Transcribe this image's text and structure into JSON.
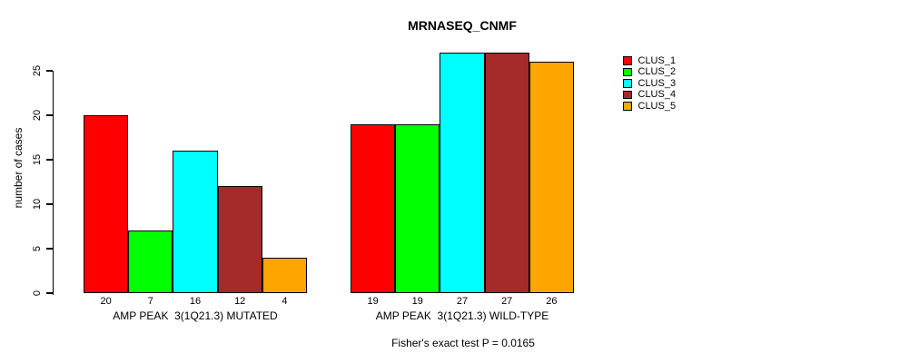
{
  "title": "MRNASEQ_CNMF",
  "ylabel": "number of cases",
  "subtitle": "Fisher's exact test P = 0.0165",
  "chart_data": {
    "type": "bar",
    "title": "MRNASEQ_CNMF",
    "xlabel": "",
    "ylabel": "number of cases",
    "ylim": [
      0,
      25
    ],
    "yticks": [
      0,
      5,
      10,
      15,
      20,
      25
    ],
    "grid": false,
    "legend_position": "right",
    "bar_value_labels": true,
    "annotation": "Fisher's exact test P = 0.0165",
    "categories": [
      "AMP PEAK  3(1Q21.3) MUTATED",
      "AMP PEAK  3(1Q21.3) WILD-TYPE"
    ],
    "series": [
      {
        "name": "CLUS_1",
        "color": "#ff0000",
        "values": [
          20,
          19
        ]
      },
      {
        "name": "CLUS_2",
        "color": "#00ff00",
        "values": [
          7,
          19
        ]
      },
      {
        "name": "CLUS_3",
        "color": "#00ffff",
        "values": [
          16,
          27
        ]
      },
      {
        "name": "CLUS_4",
        "color": "#a52a2a",
        "values": [
          12,
          27
        ]
      },
      {
        "name": "CLUS_5",
        "color": "#ffa500",
        "values": [
          4,
          26
        ]
      }
    ]
  }
}
